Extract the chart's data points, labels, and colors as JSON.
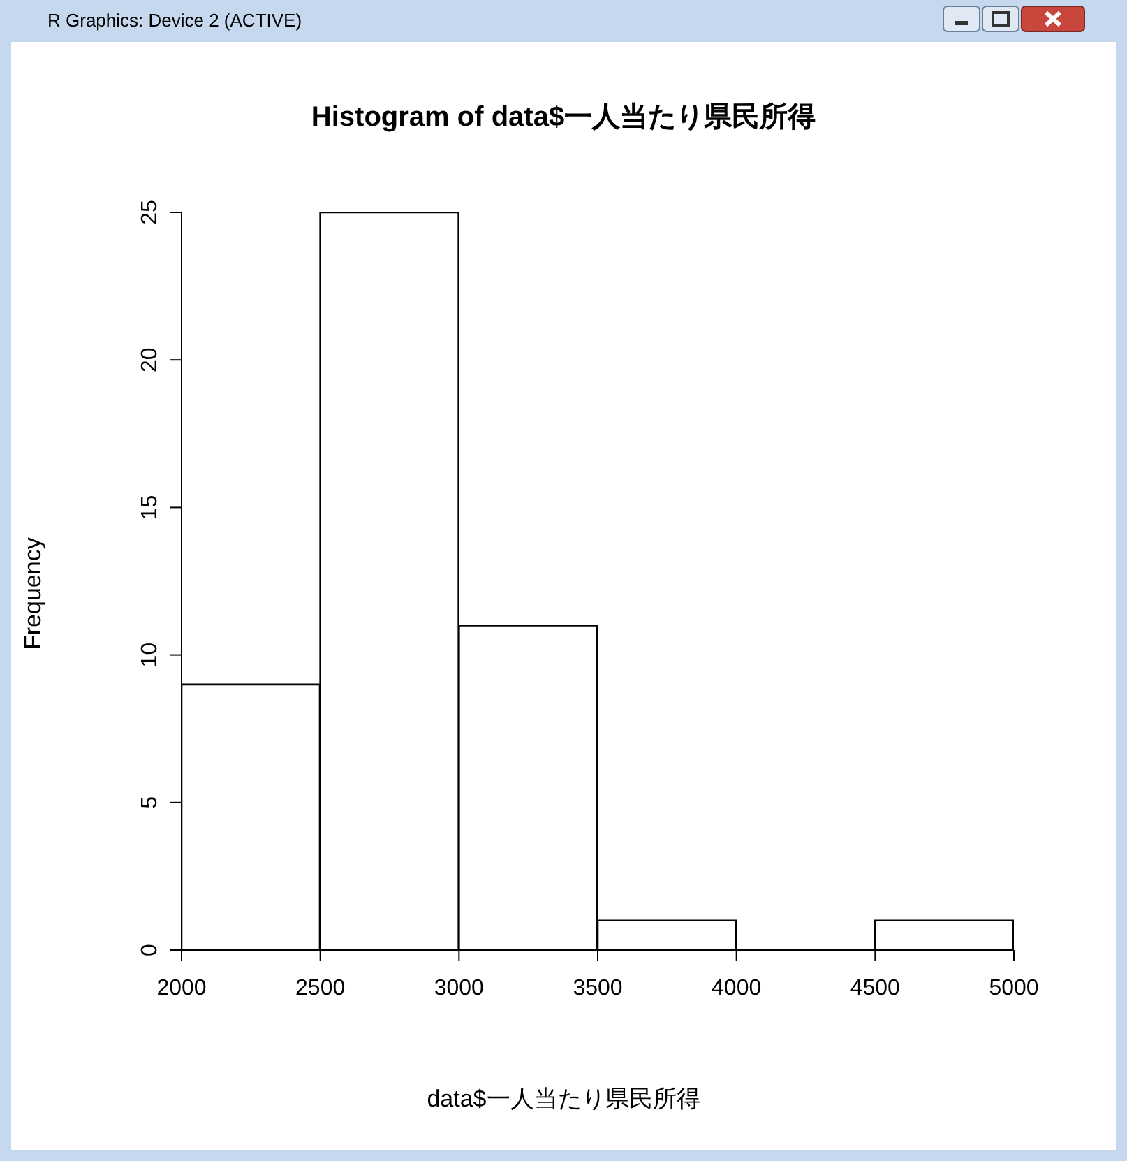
{
  "chart_data": {
    "type": "histogram",
    "title": "Histogram of data$一人当たり県民所得",
    "xlabel": "data$一人当たり県民所得",
    "ylabel": "Frequency",
    "annotations": [
      "R Graphics: Device 2 (ACTIVE)"
    ],
    "bins": [
      2000,
      2500,
      3000,
      3500,
      4000,
      4500,
      5000
    ],
    "values": [
      9,
      25,
      11,
      1,
      0,
      1
    ],
    "color": "#ffffff",
    "xlim": [
      2000,
      5000
    ],
    "xticks": [
      2000,
      2500,
      3000,
      3500,
      4000,
      4500,
      5000
    ],
    "ylim": [
      0,
      25
    ],
    "yticks": [
      0,
      5,
      10,
      15,
      20,
      25
    ],
    "grid": false,
    "legend": false
  }
}
